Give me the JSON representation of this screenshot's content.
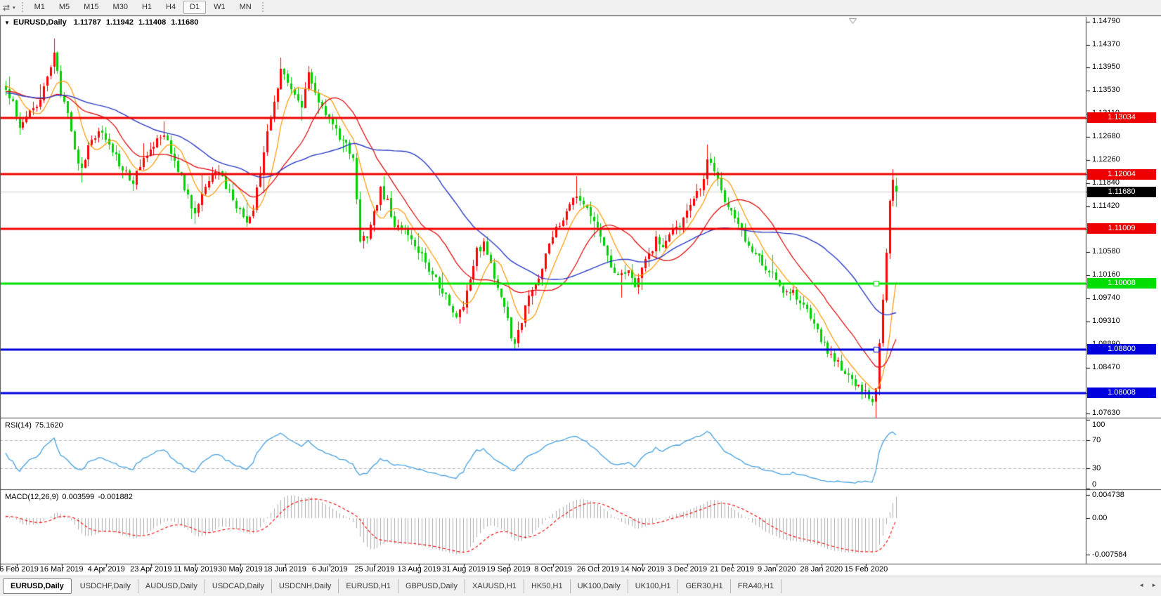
{
  "toolbar": {
    "icon_glyph": "⇄",
    "caret_glyph": "▾",
    "timeframes": [
      "M1",
      "M5",
      "M15",
      "M30",
      "H1",
      "H4",
      "D1",
      "W1",
      "MN"
    ],
    "active_timeframe": "D1"
  },
  "chart_header": {
    "collapse_icon": "▼",
    "symbol": "EURUSD,Daily",
    "open": "1.11787",
    "high": "1.11942",
    "low": "1.11408",
    "close": "1.11680"
  },
  "price_axis": {
    "ticks": [
      "1.14790",
      "1.14370",
      "1.13950",
      "1.13530",
      "1.13110",
      "1.12680",
      "1.12260",
      "1.11840",
      "1.11420",
      "1.10580",
      "1.10160",
      "1.09740",
      "1.09310",
      "1.08890",
      "1.08470",
      "1.07630"
    ]
  },
  "price_labels": [
    {
      "text": "1.13034",
      "price": 1.13034,
      "bg": "#ee0000",
      "fg": "#ffffff",
      "kind": "line"
    },
    {
      "text": "1.12004",
      "price": 1.12004,
      "bg": "#ee0000",
      "fg": "#ffffff",
      "kind": "line"
    },
    {
      "text": "1.11680",
      "price": 1.1168,
      "bg": "#000000",
      "fg": "#ffffff",
      "kind": "current"
    },
    {
      "text": "1.11009",
      "price": 1.11009,
      "bg": "#ee0000",
      "fg": "#ffffff",
      "kind": "line"
    },
    {
      "text": "1.10008",
      "price": 1.10008,
      "bg": "#00dd00",
      "fg": "#ffffff",
      "kind": "line"
    },
    {
      "text": "1.08800",
      "price": 1.088,
      "bg": "#0000dd",
      "fg": "#ffffff",
      "kind": "line"
    },
    {
      "text": "1.08008",
      "price": 1.08008,
      "bg": "#0000dd",
      "fg": "#ffffff",
      "kind": "line"
    }
  ],
  "rsi_panel": {
    "name": "RSI(14)",
    "value": "75.1620",
    "axis_labels": [
      "100",
      "70",
      "30",
      "0"
    ],
    "axis_values": [
      100,
      70,
      30,
      0
    ],
    "level_lines": [
      70,
      30
    ],
    "line_color": "#46a0e0"
  },
  "macd_panel": {
    "name": "MACD(12,26,9)",
    "value_main": "0.003599",
    "value_signal": "-0.001882",
    "axis_labels": [
      "0.004738",
      "0.00",
      "-0.007584"
    ],
    "axis_values": [
      0.004738,
      0,
      -0.007584
    ],
    "histogram_color": "#ababab",
    "signal_color": "#ff0000"
  },
  "date_axis": [
    "26 Feb 2019",
    "16 Mar 2019",
    "4 Apr 2019",
    "23 Apr 2019",
    "11 May 2019",
    "30 May 2019",
    "18 Jun 2019",
    "6 Jul 2019",
    "25 Jul 2019",
    "13 Aug 2019",
    "31 Aug 2019",
    "19 Sep 2019",
    "8 Oct 2019",
    "26 Oct 2019",
    "14 Nov 2019",
    "3 Dec 2019",
    "21 Dec 2019",
    "9 Jan 2020",
    "28 Jan 2020",
    "15 Feb 2020"
  ],
  "tabs": {
    "items": [
      "EURUSD,Daily",
      "USDCHF,Daily",
      "AUDUSD,Daily",
      "USDCAD,Daily",
      "USDCNH,Daily",
      "EURUSD,H1",
      "GBPUSD,Daily",
      "XAUUSD,H1",
      "HK50,H1",
      "UK100,Daily",
      "UK100,H1",
      "GER30,H1",
      "FRA40,H1"
    ],
    "active_index": 0,
    "scroll_left": "◄",
    "scroll_right": "►"
  },
  "chart_data": {
    "type": "candlestick",
    "title": "EURUSD,Daily",
    "timeframe": "D1",
    "bars": 260,
    "ylim": [
      1.0757,
      1.1488
    ],
    "x_tick_labels": [
      "26 Feb 2019",
      "16 Mar 2019",
      "4 Apr 2019",
      "23 Apr 2019",
      "11 May 2019",
      "30 May 2019",
      "18 Jun 2019",
      "6 Jul 2019",
      "25 Jul 2019",
      "13 Aug 2019",
      "31 Aug 2019",
      "19 Sep 2019",
      "8 Oct 2019",
      "26 Oct 2019",
      "14 Nov 2019",
      "3 Dec 2019",
      "21 Dec 2019",
      "9 Jan 2020",
      "28 Jan 2020",
      "15 Feb 2020"
    ],
    "up_color": "#ff0000",
    "down_color": "#00cf00",
    "last_bar": {
      "open": 1.11787,
      "high": 1.11942,
      "low": 1.11408,
      "close": 1.1168
    },
    "price_path_anchors": [
      [
        0,
        1.136
      ],
      [
        2,
        1.133
      ],
      [
        4,
        1.129
      ],
      [
        7,
        1.1315
      ],
      [
        10,
        1.134
      ],
      [
        13,
        1.139
      ],
      [
        14,
        1.1415
      ],
      [
        16,
        1.135
      ],
      [
        18,
        1.132
      ],
      [
        20,
        1.124
      ],
      [
        22,
        1.1215
      ],
      [
        25,
        1.1262
      ],
      [
        28,
        1.128
      ],
      [
        31,
        1.1245
      ],
      [
        34,
        1.1205
      ],
      [
        37,
        1.1188
      ],
      [
        40,
        1.1225
      ],
      [
        43,
        1.1258
      ],
      [
        46,
        1.1272
      ],
      [
        49,
        1.123
      ],
      [
        53,
        1.116
      ],
      [
        55,
        1.113
      ],
      [
        58,
        1.1175
      ],
      [
        61,
        1.1205
      ],
      [
        64,
        1.118
      ],
      [
        67,
        1.1135
      ],
      [
        70,
        1.1118
      ],
      [
        72,
        1.1135
      ],
      [
        75,
        1.1245
      ],
      [
        78,
        1.133
      ],
      [
        80,
        1.139
      ],
      [
        82,
        1.137
      ],
      [
        84,
        1.1345
      ],
      [
        86,
        1.132
      ],
      [
        88,
        1.138
      ],
      [
        90,
        1.1355
      ],
      [
        93,
        1.1305
      ],
      [
        96,
        1.128
      ],
      [
        99,
        1.1255
      ],
      [
        101,
        1.123
      ],
      [
        103,
        1.108
      ],
      [
        105,
        1.1085
      ],
      [
        107,
        1.1125
      ],
      [
        109,
        1.117
      ],
      [
        111,
        1.115
      ],
      [
        113,
        1.1105
      ],
      [
        116,
        1.1095
      ],
      [
        119,
        1.1075
      ],
      [
        122,
        1.104
      ],
      [
        125,
        1.1005
      ],
      [
        128,
        1.0975
      ],
      [
        131,
        1.0935
      ],
      [
        133,
        1.0965
      ],
      [
        135,
        1.101
      ],
      [
        137,
        1.106
      ],
      [
        139,
        1.107
      ],
      [
        141,
        1.103
      ],
      [
        143,
        1.099
      ],
      [
        145,
        1.0955
      ],
      [
        147,
        1.0905
      ],
      [
        148,
        1.089
      ],
      [
        150,
        1.0935
      ],
      [
        152,
        1.0985
      ],
      [
        155,
        1.101
      ],
      [
        158,
        1.107
      ],
      [
        161,
        1.111
      ],
      [
        164,
        1.115
      ],
      [
        166,
        1.1165
      ],
      [
        168,
        1.115
      ],
      [
        170,
        1.1125
      ],
      [
        172,
        1.1105
      ],
      [
        174,
        1.107
      ],
      [
        176,
        1.1035
      ],
      [
        178,
        1.101
      ],
      [
        181,
        1.1018
      ],
      [
        183,
        1.1
      ],
      [
        186,
        1.104
      ],
      [
        189,
        1.1078
      ],
      [
        191,
        1.1072
      ],
      [
        194,
        1.1105
      ],
      [
        197,
        1.1115
      ],
      [
        200,
        1.115
      ],
      [
        202,
        1.1175
      ],
      [
        204,
        1.1222
      ],
      [
        206,
        1.1212
      ],
      [
        208,
        1.117
      ],
      [
        210,
        1.1135
      ],
      [
        212,
        1.1118
      ],
      [
        214,
        1.1092
      ],
      [
        217,
        1.1065
      ],
      [
        220,
        1.1038
      ],
      [
        223,
        1.1015
      ],
      [
        226,
        1.0992
      ],
      [
        229,
        1.0982
      ],
      [
        232,
        1.0962
      ],
      [
        235,
        1.0925
      ],
      [
        238,
        1.0888
      ],
      [
        241,
        1.0862
      ],
      [
        244,
        1.0838
      ],
      [
        247,
        1.0818
      ],
      [
        250,
        1.0798
      ],
      [
        252,
        1.0786
      ],
      [
        253,
        1.0812
      ],
      [
        254,
        1.0885
      ],
      [
        255,
        1.0965
      ],
      [
        256,
        1.1055
      ],
      [
        257,
        1.1145
      ],
      [
        258,
        1.1192
      ],
      [
        259,
        1.1168
      ]
    ],
    "key_points": [
      {
        "bar": 14,
        "high": 1.1448
      },
      {
        "bar": 55,
        "low": 1.111
      },
      {
        "bar": 80,
        "high": 1.1412
      },
      {
        "bar": 88,
        "high": 1.1398
      },
      {
        "bar": 110,
        "high": 1.1192
      },
      {
        "bar": 148,
        "low": 1.0879
      },
      {
        "bar": 166,
        "high": 1.1197
      },
      {
        "bar": 204,
        "high": 1.1254
      },
      {
        "bar": 252,
        "low": 1.0778
      },
      {
        "bar": 258,
        "high": 1.1209
      }
    ],
    "horizontal_lines": [
      {
        "price": 1.13034,
        "color": "#ee0000",
        "width": 3
      },
      {
        "price": 1.12004,
        "color": "#ee0000",
        "width": 3
      },
      {
        "price": 1.11009,
        "color": "#ee0000",
        "width": 3
      },
      {
        "price": 1.10008,
        "color": "#00e400",
        "width": 3,
        "handle": true
      },
      {
        "price": 1.088,
        "color": "#0000dd",
        "width": 3,
        "handle": true
      },
      {
        "price": 1.08008,
        "color": "#0000dd",
        "width": 3
      }
    ],
    "current_price_line": {
      "price": 1.1168,
      "color": "#c4c4c4",
      "width": 1
    },
    "moving_averages": [
      {
        "period": 8,
        "color": "#ff9800"
      },
      {
        "period": 20,
        "color": "#e00000"
      },
      {
        "period": 45,
        "color": "#2b3cc8"
      }
    ],
    "indicators": [
      {
        "name": "RSI",
        "period": 14,
        "last_value": 75.162,
        "range": [
          0,
          100
        ],
        "levels": [
          70,
          30
        ]
      },
      {
        "name": "MACD",
        "fast": 12,
        "slow": 26,
        "signal": 9,
        "last_main": 0.003599,
        "last_signal": -0.001882,
        "axis_max": 0.004738,
        "axis_min": -0.007584
      }
    ]
  }
}
